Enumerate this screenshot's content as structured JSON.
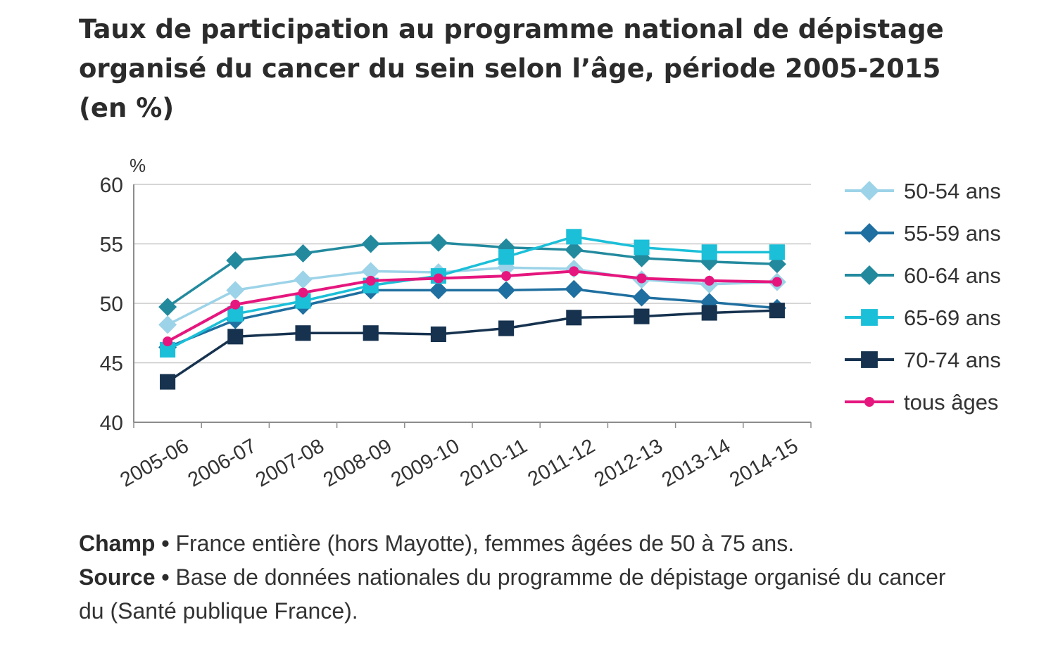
{
  "title_lines": [
    "Taux de participation au programme national de dépistage",
    "organisé du cancer du sein selon l’âge, période 2005-2015",
    "(en %)"
  ],
  "notes": {
    "champ_label": "Champ •",
    "champ_text": " France entière (hors Mayotte), femmes âgées de 50 à 75 ans.",
    "source_label": "Source •",
    "source_text_1": " Base de données nationales du programme de dépistage organisé du cancer",
    "source_text_2": "du (Santé publique France)."
  },
  "chart_data": {
    "type": "line",
    "ylabel": "%",
    "ylim": [
      40,
      60
    ],
    "yticks": [
      40,
      45,
      50,
      55,
      60
    ],
    "grid": "horizontal",
    "legend_position": "right",
    "categories": [
      "2005-06",
      "2006-07",
      "2007-08",
      "2008-09",
      "2009-10",
      "2010-11",
      "2011-12",
      "2012-13",
      "2013-14",
      "2014-15"
    ],
    "series": [
      {
        "name": "50-54 ans",
        "marker": "diamond",
        "color": "#9cd3e8",
        "values": [
          48.2,
          51.1,
          52.0,
          52.7,
          52.6,
          53.0,
          52.9,
          52.0,
          51.6,
          51.8
        ]
      },
      {
        "name": "55-59 ans",
        "marker": "diamond",
        "color": "#1f6fa0",
        "values": [
          46.3,
          48.6,
          49.8,
          51.1,
          51.1,
          51.1,
          51.2,
          50.5,
          50.1,
          49.6
        ]
      },
      {
        "name": "60-64 ans",
        "marker": "diamond",
        "color": "#238a9e",
        "values": [
          49.7,
          53.6,
          54.2,
          55.0,
          55.1,
          54.7,
          54.5,
          53.8,
          53.5,
          53.3
        ]
      },
      {
        "name": "65-69 ans",
        "marker": "square",
        "color": "#1bbfd8",
        "values": [
          46.1,
          49.1,
          50.2,
          51.5,
          52.3,
          53.9,
          55.6,
          54.7,
          54.3,
          54.3
        ]
      },
      {
        "name": "70-74 ans",
        "marker": "square",
        "color": "#16324f",
        "values": [
          43.4,
          47.2,
          47.5,
          47.5,
          47.4,
          47.9,
          48.8,
          48.9,
          49.2,
          49.4
        ]
      },
      {
        "name": "tous âges",
        "marker": "circle",
        "color": "#e5177e",
        "values": [
          46.8,
          49.9,
          50.9,
          51.9,
          52.1,
          52.3,
          52.7,
          52.1,
          51.9,
          51.8
        ]
      }
    ]
  }
}
